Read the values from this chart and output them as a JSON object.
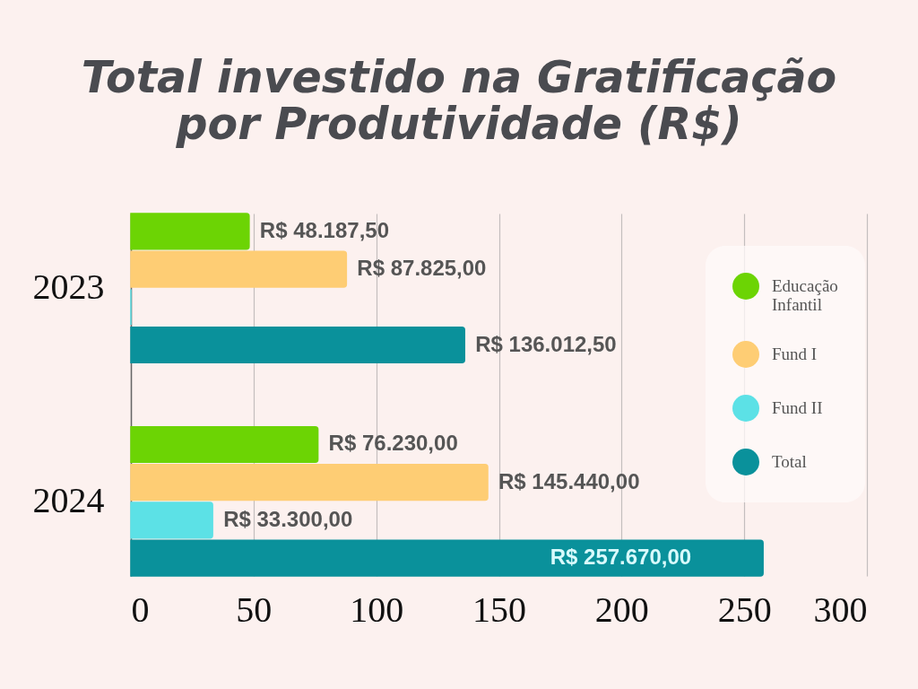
{
  "chart_data": {
    "type": "bar",
    "orientation": "horizontal",
    "title": "Total investido na Gratificação por Produtividade (R$)",
    "categories": [
      "2023",
      "2024"
    ],
    "series": [
      {
        "name": "Educação Infantil",
        "color": "#6cd404",
        "values": [
          48.1875,
          76.23
        ],
        "value_labels": [
          "R$ 48.187,50",
          "R$ 76.230,00"
        ]
      },
      {
        "name": "Fund I",
        "color": "#fecd74",
        "values": [
          87.825,
          145.44
        ],
        "value_labels": [
          "R$ 87.825,00",
          "R$ 145.440,00"
        ]
      },
      {
        "name": "Fund II",
        "color": "#5ce1e6",
        "values": [
          0,
          33.3
        ],
        "value_labels": [
          null,
          "R$ 33.300,00"
        ]
      },
      {
        "name": "Total",
        "color": "#0a919b",
        "values": [
          136.0125,
          257.67
        ],
        "value_labels": [
          "R$ 136.012,50",
          "R$ 257.670,00"
        ]
      }
    ],
    "xlim": [
      0,
      300
    ],
    "xticks": [
      0,
      50,
      100,
      150,
      200,
      250,
      300
    ],
    "grid": "x",
    "legend": "right"
  }
}
